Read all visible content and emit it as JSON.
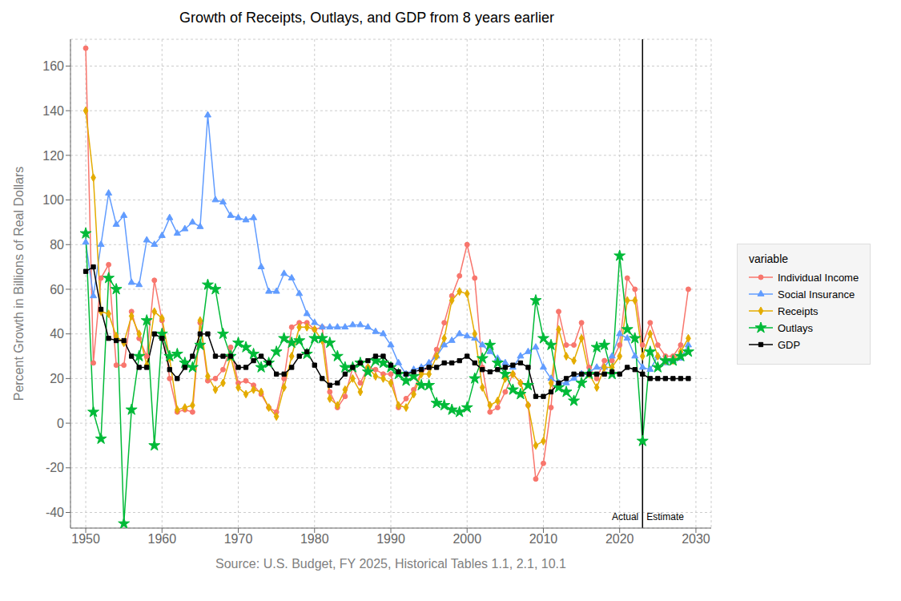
{
  "chart_data": {
    "type": "line",
    "title": "Growth of Receipts, Outlays, and GDP from 8 years earlier",
    "x_label": "Source: U.S. Budget, FY 2025, Historical Tables 1.1, 2.1, 10.1",
    "y_label": "Percent Growth in Billions of Real Dollars",
    "xlim": [
      1948,
      2032
    ],
    "ylim": [
      -47,
      172
    ],
    "xticks": [
      1950,
      1960,
      1970,
      1980,
      1990,
      2000,
      2010,
      2020,
      2030
    ],
    "yticks": [
      -40,
      -20,
      0,
      20,
      40,
      60,
      80,
      100,
      120,
      140,
      160
    ],
    "grid": true,
    "legend": "right",
    "legend_title": "variable",
    "vline": 2023,
    "annotations": [
      {
        "text": "Actual",
        "x": 2023,
        "y": -42,
        "side": "left"
      },
      {
        "text": "Estimate",
        "x": 2023,
        "y": -42,
        "side": "right"
      }
    ],
    "x": [
      1950,
      1951,
      1952,
      1953,
      1954,
      1955,
      1956,
      1957,
      1958,
      1959,
      1960,
      1961,
      1962,
      1963,
      1964,
      1965,
      1966,
      1967,
      1968,
      1969,
      1970,
      1971,
      1972,
      1973,
      1974,
      1975,
      1976,
      1977,
      1978,
      1979,
      1980,
      1981,
      1982,
      1983,
      1984,
      1985,
      1986,
      1987,
      1988,
      1989,
      1990,
      1991,
      1992,
      1993,
      1994,
      1995,
      1996,
      1997,
      1998,
      1999,
      2000,
      2001,
      2002,
      2003,
      2004,
      2005,
      2006,
      2007,
      2008,
      2009,
      2010,
      2011,
      2012,
      2013,
      2014,
      2015,
      2016,
      2017,
      2018,
      2019,
      2020,
      2021,
      2022,
      2023,
      2024,
      2025,
      2026,
      2027,
      2028,
      2029
    ],
    "series": [
      {
        "name": "Individual Income",
        "color": "#F8766D",
        "marker": "circle",
        "values": [
          168,
          27,
          65,
          71,
          26,
          26,
          50,
          38,
          30,
          64,
          46,
          20,
          5,
          6,
          5,
          45,
          19,
          20,
          24,
          34,
          18,
          19,
          17,
          13,
          7,
          5,
          20,
          43,
          45,
          45,
          42,
          43,
          14,
          7,
          12,
          25,
          18,
          25,
          24,
          22,
          22,
          7,
          11,
          15,
          23,
          25,
          33,
          45,
          57,
          66,
          80,
          65,
          25,
          5,
          7,
          14,
          22,
          18,
          8,
          -25,
          -18,
          7,
          50,
          35,
          35,
          45,
          25,
          20,
          28,
          28,
          35,
          65,
          60,
          35,
          45,
          35,
          30,
          30,
          35,
          60
        ]
      },
      {
        "name": "Social Insurance",
        "color": "#619CFF",
        "marker": "triangle",
        "values": [
          81,
          57,
          80,
          103,
          89,
          93,
          63,
          62,
          82,
          80,
          84,
          92,
          85,
          87,
          90,
          88,
          138,
          100,
          99,
          93,
          92,
          91,
          92,
          70,
          59,
          59,
          67,
          65,
          58,
          49,
          45,
          43,
          43,
          43,
          43,
          44,
          44,
          43,
          41,
          40,
          35,
          27,
          22,
          24,
          25,
          27,
          30,
          35,
          37,
          40,
          39,
          38,
          35,
          32,
          29,
          27,
          25,
          30,
          32,
          34,
          25,
          20,
          18,
          18,
          20,
          22,
          23,
          25,
          25,
          30,
          40,
          38,
          30,
          25,
          24,
          30,
          27,
          28,
          29,
          35
        ]
      },
      {
        "name": "Receipts",
        "color": "#E4AC00",
        "marker": "diamond",
        "values": [
          140,
          110,
          50,
          49,
          39,
          36,
          48,
          40,
          26,
          50,
          47,
          29,
          6,
          7,
          8,
          46,
          21,
          15,
          18,
          30,
          16,
          13,
          15,
          14,
          7,
          3,
          16,
          30,
          43,
          43,
          42,
          37,
          11,
          8,
          15,
          20,
          14,
          25,
          21,
          20,
          18,
          8,
          7,
          13,
          22,
          22,
          30,
          38,
          55,
          59,
          58,
          40,
          16,
          8,
          10,
          20,
          22,
          18,
          8,
          -10,
          -8,
          18,
          42,
          30,
          28,
          38,
          22,
          16,
          25,
          25,
          30,
          55,
          55,
          30,
          40,
          30,
          28,
          28,
          32,
          38
        ]
      },
      {
        "name": "Outlays",
        "color": "#00BA38",
        "marker": "star",
        "values": [
          85,
          5,
          -7,
          65,
          60,
          -45,
          6,
          30,
          46,
          -10,
          40,
          30,
          31,
          27,
          25,
          35,
          62,
          60,
          40,
          30,
          36,
          34,
          31,
          25,
          27,
          32,
          38,
          36,
          37,
          31,
          38,
          38,
          36,
          30,
          25,
          25,
          27,
          23,
          28,
          27,
          25,
          22,
          19,
          21,
          17,
          17,
          9,
          8,
          6,
          5,
          7,
          20,
          29,
          35,
          27,
          22,
          15,
          13,
          17,
          55,
          38,
          35,
          16,
          14,
          10,
          18,
          22,
          34,
          35,
          22,
          75,
          42,
          38,
          -8,
          32,
          25,
          28,
          28,
          30,
          32
        ]
      },
      {
        "name": "GDP",
        "color": "#000000",
        "marker": "square",
        "values": [
          68,
          70,
          51,
          38,
          37,
          37,
          30,
          25,
          25,
          40,
          38,
          24,
          20,
          25,
          30,
          40,
          40,
          30,
          30,
          30,
          25,
          25,
          28,
          30,
          27,
          22,
          22,
          25,
          30,
          32,
          26,
          20,
          17,
          18,
          22,
          25,
          27,
          28,
          30,
          30,
          26,
          23,
          22,
          23,
          24,
          25,
          25,
          27,
          27,
          28,
          30,
          27,
          24,
          23,
          24,
          25,
          26,
          27,
          25,
          12,
          12,
          14,
          18,
          20,
          22,
          22,
          22,
          22,
          22,
          23,
          22,
          25,
          24,
          22,
          20,
          20,
          20,
          20,
          20,
          20
        ]
      }
    ]
  }
}
